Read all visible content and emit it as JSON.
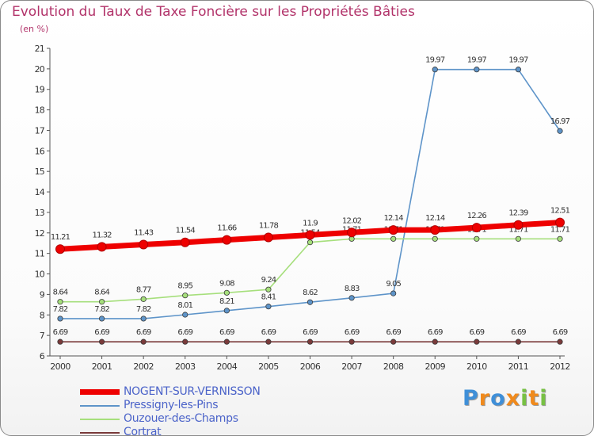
{
  "chart_data": {
    "type": "line",
    "title": "Evolution du Taux de Taxe Foncière sur les Propriétés Bâties",
    "ylabel": "(en %)",
    "xlabel": "",
    "ylim": [
      6,
      21
    ],
    "yticks": [
      6,
      7,
      8,
      9,
      10,
      11,
      12,
      13,
      14,
      15,
      16,
      17,
      18,
      19,
      20,
      21
    ],
    "categories": [
      "2000",
      "2001",
      "2002",
      "2003",
      "2004",
      "2005",
      "2006",
      "2007",
      "2008",
      "2009",
      "2010",
      "2011",
      "2012"
    ],
    "grid": false,
    "series": [
      {
        "name": "Cortrat",
        "color": "#7a3a3a",
        "values": [
          6.69,
          6.69,
          6.69,
          6.69,
          6.69,
          6.69,
          6.69,
          6.69,
          6.69,
          6.69,
          6.69,
          6.69,
          6.69
        ],
        "labels": [
          "6.69",
          "6.69",
          "6.69",
          "6.69",
          "6.69",
          "6.69",
          "6.69",
          "6.69",
          "6.69",
          "6.69",
          "6.69",
          "6.69",
          "6.69"
        ]
      },
      {
        "name": "Pressigny-les-Pins",
        "color": "#5e94c9",
        "values": [
          7.82,
          7.82,
          7.82,
          8.01,
          8.21,
          8.41,
          8.62,
          8.83,
          9.05,
          19.97,
          19.97,
          19.97,
          16.97
        ],
        "labels": [
          "7.82",
          "7.82",
          "7.82",
          "8.01",
          "8.21",
          "8.41",
          "8.62",
          "8.83",
          "9.05",
          "19.97",
          "19.97",
          "19.97",
          "16.97"
        ]
      },
      {
        "name": "Ouzouer-des-Champs",
        "color": "#a6df7c",
        "values": [
          8.64,
          8.64,
          8.77,
          8.95,
          9.08,
          9.24,
          11.54,
          11.71,
          11.71,
          11.71,
          11.71,
          11.71,
          11.71
        ],
        "labels": [
          "8.64",
          "8.64",
          "8.77",
          "8.95",
          "9.08",
          "9.24",
          "11.54",
          "11.71",
          "11.71",
          "11.71",
          "11.71",
          "11.71",
          "11.71"
        ]
      },
      {
        "name": "NOGENT-SUR-VERNISSON",
        "color": "#ee0000",
        "values": [
          11.21,
          11.32,
          11.43,
          11.54,
          11.66,
          11.78,
          11.9,
          12.02,
          12.14,
          12.14,
          12.26,
          12.39,
          12.51
        ],
        "labels": [
          "11.21",
          "11.32",
          "11.43",
          "11.54",
          "11.66",
          "11.78",
          "11.9",
          "12.02",
          "12.14",
          "12.14",
          "12.26",
          "12.39",
          "12.51"
        ]
      }
    ],
    "legend": [
      {
        "name": "NOGENT-SUR-VERNISSON",
        "color": "#ee0000"
      },
      {
        "name": "Pressigny-les-Pins",
        "color": "#5e94c9"
      },
      {
        "name": "Ouzouer-des-Champs",
        "color": "#a6df7c"
      },
      {
        "name": "Cortrat",
        "color": "#7a3a3a"
      }
    ]
  },
  "brand": {
    "letters": [
      "P",
      "r",
      "o",
      "x",
      "i",
      "t",
      "i"
    ],
    "colors": [
      "#3f8fd8",
      "#f08a1c",
      "#3f8fd8",
      "#f08a1c",
      "#77c043",
      "#f08a1c",
      "#77c043"
    ]
  }
}
